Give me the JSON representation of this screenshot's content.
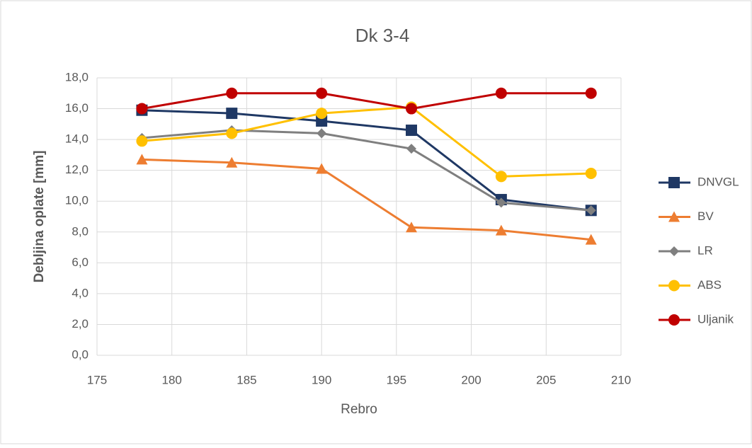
{
  "chart_data": {
    "type": "line",
    "title": "Dk 3-4",
    "x_label": "Rebro",
    "y_label": "Debljina oplate [mm]",
    "x": [
      178,
      184,
      190,
      196,
      202,
      208
    ],
    "series": [
      {
        "name": "DNVGL",
        "color": "#1f3864",
        "marker": "square",
        "values": [
          15.9,
          15.7,
          15.2,
          14.6,
          10.1,
          9.4
        ]
      },
      {
        "name": "BV",
        "color": "#ed7d31",
        "marker": "triangle",
        "values": [
          12.7,
          12.5,
          12.1,
          8.3,
          8.1,
          7.5
        ]
      },
      {
        "name": "LR",
        "color": "#7f7f7f",
        "marker": "diamond",
        "values": [
          14.1,
          14.6,
          14.4,
          13.4,
          9.9,
          9.4
        ]
      },
      {
        "name": "ABS",
        "color": "#ffc000",
        "marker": "circle",
        "values": [
          13.9,
          14.4,
          15.7,
          16.1,
          11.6,
          11.8
        ]
      },
      {
        "name": "Uljanik",
        "color": "#c00000",
        "marker": "circle",
        "values": [
          16,
          17,
          17,
          16,
          17,
          17
        ]
      }
    ],
    "xlim": [
      175,
      210
    ],
    "xticks": [
      175,
      180,
      185,
      190,
      195,
      200,
      205,
      210
    ],
    "ylim": [
      0,
      18
    ],
    "yticks": [
      {
        "value": 0,
        "label": "0,0"
      },
      {
        "value": 2,
        "label": "2,0"
      },
      {
        "value": 4,
        "label": "4,0"
      },
      {
        "value": 6,
        "label": "6,0"
      },
      {
        "value": 8,
        "label": "8,0"
      },
      {
        "value": 10,
        "label": "10,0"
      },
      {
        "value": 12,
        "label": "12,0"
      },
      {
        "value": 14,
        "label": "14,0"
      },
      {
        "value": 16,
        "label": "16,0"
      },
      {
        "value": 18,
        "label": "18,0"
      }
    ],
    "grid": true,
    "legend": "right"
  }
}
